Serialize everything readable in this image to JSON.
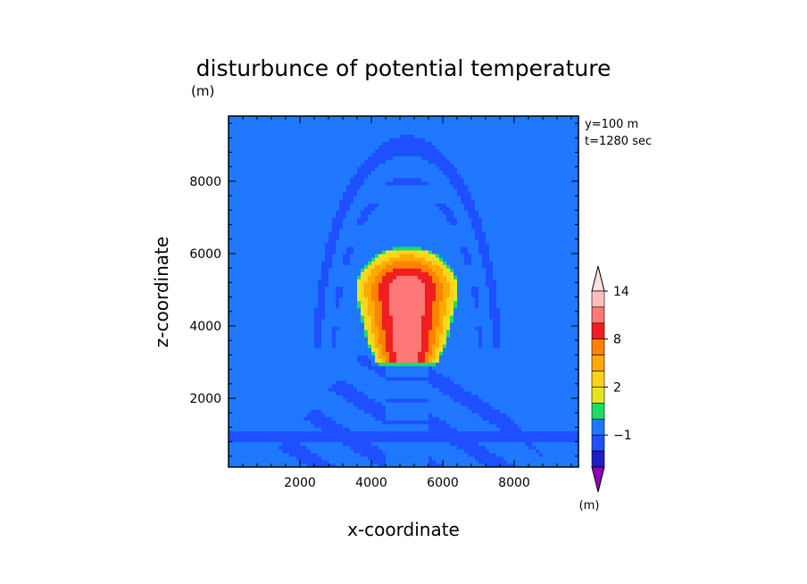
{
  "chart_data": {
    "type": "heatmap",
    "title": "disturbunce of potential temperature",
    "title_unit": "(m)",
    "xlabel": "x-coordinate",
    "ylabel": "z-coordinate",
    "xlim": [
      0,
      9800
    ],
    "ylim": [
      100,
      9800
    ],
    "xticks": [
      2000,
      4000,
      6000,
      8000
    ],
    "yticks": [
      2000,
      4000,
      6000,
      8000
    ],
    "info": [
      "y=100 m",
      "t=1280 sec"
    ],
    "colorbar": {
      "unit": "(m)",
      "levels": [
        -3,
        -2,
        -1,
        0,
        1,
        2,
        4,
        6,
        8,
        10,
        12,
        14,
        16
      ],
      "tick_labels": [
        "-1",
        "2",
        "8",
        "14"
      ],
      "colors": [
        "#8e00b4",
        "#1e1ec8",
        "#1e50ff",
        "#1f78ff",
        "#1edc64",
        "#e6e61e",
        "#ffd21e",
        "#ffaa00",
        "#ff8200",
        "#f01e1e",
        "#ff7878",
        "#ffbebe",
        "#ffe1e1"
      ]
    },
    "field": {
      "background_value": -0.5,
      "bubble": {
        "center_x": 5000,
        "center_z": 5000,
        "max_value": 11,
        "top_z": 6200,
        "bottom_z": 2800,
        "half_width": 1450
      },
      "gravity_wave_arc_top_z": 9000,
      "boundary_layer_band_z": [
        800,
        1100
      ]
    }
  }
}
